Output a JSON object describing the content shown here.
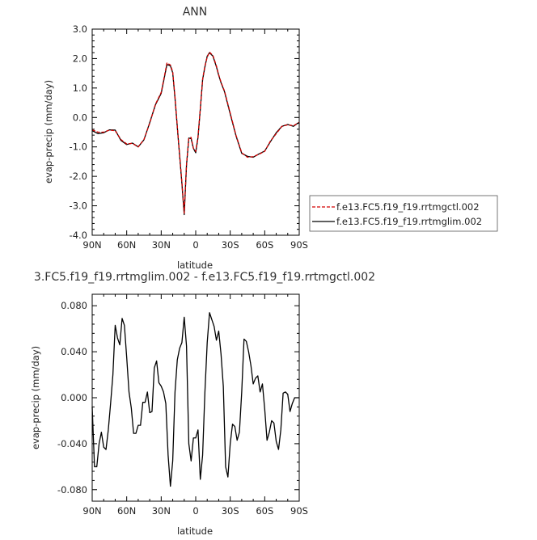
{
  "chart_data": [
    {
      "type": "line",
      "title": "ANN",
      "xlabel": "latitude",
      "ylabel": "evap-precip (mm/day)",
      "xlim": [
        90,
        -90
      ],
      "ylim": [
        -4.0,
        3.0
      ],
      "x_ticks": [
        "90N",
        "60N",
        "30N",
        "0",
        "30S",
        "60S",
        "90S"
      ],
      "y_ticks": [
        "3.0",
        "2.0",
        "1.0",
        "0.0",
        "-1.0",
        "-2.0",
        "-3.0",
        "-4.0"
      ],
      "legend_position": "right",
      "colors": {
        "ctl": "#d40000",
        "lim": "#000000"
      },
      "series": [
        {
          "name": "f.e13.FC5.f19_f19.rrtmgctl.002",
          "style": "dashed",
          "color": "#d40000",
          "x": [
            90,
            85,
            80,
            75,
            70,
            65,
            60,
            55,
            50,
            45,
            40,
            35,
            30,
            25,
            22,
            20,
            18,
            15,
            12,
            10,
            8,
            6,
            4,
            2,
            0,
            -2,
            -4,
            -6,
            -8,
            -10,
            -12,
            -15,
            -18,
            -20,
            -22,
            -25,
            -30,
            -35,
            -40,
            -45,
            -50,
            -55,
            -60,
            -65,
            -70,
            -75,
            -80,
            -85,
            -90
          ],
          "y": [
            -0.42,
            -0.5,
            -0.5,
            -0.43,
            -0.45,
            -0.75,
            -0.9,
            -0.88,
            -1.0,
            -0.75,
            -0.2,
            0.45,
            0.85,
            1.85,
            1.78,
            1.55,
            0.7,
            -0.8,
            -2.2,
            -3.25,
            -1.6,
            -0.7,
            -0.68,
            -1.05,
            -1.15,
            -0.65,
            0.3,
            1.3,
            1.75,
            2.05,
            2.22,
            2.1,
            1.75,
            1.45,
            1.2,
            0.9,
            0.15,
            -0.6,
            -1.2,
            -1.35,
            -1.33,
            -1.25,
            -1.15,
            -0.8,
            -0.55,
            -0.3,
            -0.25,
            -0.28,
            -0.17
          ]
        },
        {
          "name": "f.e13.FC5.f19_f19.rrtmglim.002",
          "style": "solid",
          "color": "#000000",
          "x": [
            90,
            85,
            80,
            75,
            70,
            65,
            60,
            55,
            50,
            45,
            40,
            35,
            30,
            25,
            22,
            20,
            18,
            15,
            12,
            10,
            8,
            6,
            4,
            2,
            0,
            -2,
            -4,
            -6,
            -8,
            -10,
            -12,
            -15,
            -18,
            -20,
            -22,
            -25,
            -30,
            -35,
            -40,
            -45,
            -50,
            -55,
            -60,
            -65,
            -70,
            -75,
            -80,
            -85,
            -90
          ],
          "y": [
            -0.45,
            -0.55,
            -0.52,
            -0.42,
            -0.43,
            -0.78,
            -0.92,
            -0.87,
            -1.0,
            -0.76,
            -0.18,
            0.43,
            0.82,
            1.8,
            1.75,
            1.52,
            0.65,
            -0.82,
            -2.25,
            -3.3,
            -1.62,
            -0.7,
            -0.72,
            -1.05,
            -1.2,
            -0.68,
            0.28,
            1.28,
            1.72,
            2.08,
            2.2,
            2.08,
            1.72,
            1.43,
            1.18,
            0.88,
            0.12,
            -0.62,
            -1.22,
            -1.32,
            -1.35,
            -1.24,
            -1.14,
            -0.82,
            -0.52,
            -0.3,
            -0.24,
            -0.3,
            -0.16
          ]
        }
      ]
    },
    {
      "type": "line",
      "title": "3.FC5.f19_f19.rrtmglim.002 - f.e13.FC5.f19_f19.rrtmgctl.002",
      "xlabel": "latitude",
      "ylabel": "evap-precip (mm/day)",
      "xlim": [
        90,
        -90
      ],
      "ylim": [
        -0.09,
        0.09
      ],
      "x_ticks": [
        "90N",
        "60N",
        "30N",
        "0",
        "30S",
        "60S",
        "90S"
      ],
      "y_ticks": [
        "0.080",
        "0.040",
        "0.000",
        "-0.040",
        "-0.080"
      ],
      "series": [
        {
          "color": "#000000",
          "x": [
            90,
            88,
            86,
            84,
            82,
            80,
            78,
            76,
            74,
            72,
            70,
            68,
            66,
            64,
            62,
            60,
            58,
            56,
            54,
            52,
            50,
            48,
            46,
            44,
            42,
            40,
            38,
            36,
            34,
            32,
            30,
            28,
            26,
            24,
            22,
            20,
            18,
            16,
            14,
            12,
            10,
            8,
            6,
            4,
            2,
            0,
            -2,
            -4,
            -6,
            -8,
            -10,
            -12,
            -14,
            -16,
            -18,
            -20,
            -22,
            -24,
            -26,
            -28,
            -30,
            -32,
            -34,
            -36,
            -38,
            -40,
            -42,
            -44,
            -46,
            -48,
            -50,
            -52,
            -54,
            -56,
            -58,
            -60,
            -62,
            -64,
            -66,
            -68,
            -70,
            -72,
            -74,
            -76,
            -78,
            -80,
            -82,
            -84,
            -86,
            -88,
            -90
          ],
          "y": [
            -0.008,
            -0.06,
            -0.06,
            -0.04,
            -0.03,
            -0.043,
            -0.045,
            -0.028,
            -0.005,
            0.02,
            0.063,
            0.052,
            0.046,
            0.069,
            0.063,
            0.035,
            0.005,
            -0.009,
            -0.031,
            -0.031,
            -0.024,
            -0.024,
            -0.004,
            -0.004,
            0.005,
            -0.013,
            -0.012,
            0.026,
            0.032,
            0.013,
            0.01,
            0.005,
            -0.005,
            -0.05,
            -0.077,
            -0.055,
            0.005,
            0.033,
            0.043,
            0.048,
            0.07,
            0.045,
            -0.04,
            -0.055,
            -0.035,
            -0.035,
            -0.028,
            -0.071,
            -0.05,
            0.005,
            0.048,
            0.074,
            0.068,
            0.062,
            0.05,
            0.058,
            0.038,
            0.01,
            -0.06,
            -0.069,
            -0.04,
            -0.023,
            -0.025,
            -0.037,
            -0.03,
            0.005,
            0.051,
            0.049,
            0.04,
            0.028,
            0.012,
            0.017,
            0.019,
            0.005,
            0.012,
            -0.01,
            -0.037,
            -0.03,
            -0.02,
            -0.022,
            -0.038,
            -0.045,
            -0.028,
            0.004,
            0.005,
            0.003,
            -0.012,
            -0.005,
            0.0,
            0.0,
            0.0
          ]
        }
      ]
    }
  ]
}
